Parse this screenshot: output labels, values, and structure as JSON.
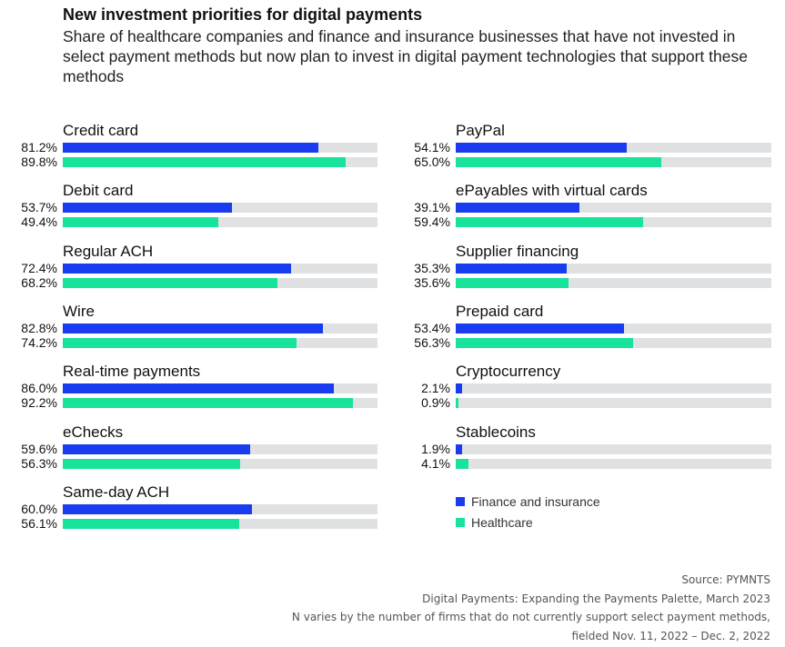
{
  "title": "New investment priorities for digital payments",
  "subtitle": "Share of healthcare companies and finance and insurance businesses that have not invested in select payment methods but now plan to invest in digital payment technologies that support these methods",
  "colors": {
    "finance": "#1a3cf0",
    "healthcare": "#18e39a",
    "track": "#e0e1e3"
  },
  "chart_data": {
    "type": "bar",
    "orientation": "horizontal",
    "xlim": [
      0,
      100
    ],
    "unit": "%",
    "series": [
      {
        "name": "Finance and insurance",
        "color": "#1a3cf0"
      },
      {
        "name": "Healthcare",
        "color": "#18e39a"
      }
    ],
    "categories": [
      {
        "label": "Credit card",
        "finance": 81.2,
        "healthcare": 89.8,
        "finance_label": "81.2%",
        "healthcare_label": "89.8%"
      },
      {
        "label": "Debit card",
        "finance": 53.7,
        "healthcare": 49.4,
        "finance_label": "53.7%",
        "healthcare_label": "49.4%"
      },
      {
        "label": "Regular ACH",
        "finance": 72.4,
        "healthcare": 68.2,
        "finance_label": "72.4%",
        "healthcare_label": "68.2%"
      },
      {
        "label": "Wire",
        "finance": 82.8,
        "healthcare": 74.2,
        "finance_label": "82.8%",
        "healthcare_label": "74.2%"
      },
      {
        "label": "Real-time payments",
        "finance": 86.0,
        "healthcare": 92.2,
        "finance_label": "86.0%",
        "healthcare_label": "92.2%"
      },
      {
        "label": "eChecks",
        "finance": 59.6,
        "healthcare": 56.3,
        "finance_label": "59.6%",
        "healthcare_label": "56.3%"
      },
      {
        "label": "Same-day ACH",
        "finance": 60.0,
        "healthcare": 56.1,
        "finance_label": "60.0%",
        "healthcare_label": "56.1%"
      },
      {
        "label": "PayPal",
        "finance": 54.1,
        "healthcare": 65.0,
        "finance_label": "54.1%",
        "healthcare_label": "65.0%"
      },
      {
        "label": "ePayables with virtual cards",
        "finance": 39.1,
        "healthcare": 59.4,
        "finance_label": "39.1%",
        "healthcare_label": "59.4%"
      },
      {
        "label": "Supplier financing",
        "finance": 35.3,
        "healthcare": 35.6,
        "finance_label": "35.3%",
        "healthcare_label": "35.6%"
      },
      {
        "label": "Prepaid card",
        "finance": 53.4,
        "healthcare": 56.3,
        "finance_label": "53.4%",
        "healthcare_label": "56.3%"
      },
      {
        "label": "Cryptocurrency",
        "finance": 2.1,
        "healthcare": 0.9,
        "finance_label": "2.1%",
        "healthcare_label": "0.9%"
      },
      {
        "label": "Stablecoins",
        "finance": 1.9,
        "healthcare": 4.1,
        "finance_label": "1.9%",
        "healthcare_label": "4.1%"
      }
    ],
    "legend": [
      "Finance and insurance",
      "Healthcare"
    ],
    "legend_position": "bottom-right"
  },
  "footer": {
    "source": "Source: PYMNTS",
    "report": "Digital Payments: Expanding the Payments Palette, March 2023",
    "note_line1": "N varies by the number of firms that do not currently support select payment methods,",
    "note_line2": "fielded Nov. 11, 2022 – Dec. 2, 2022"
  }
}
